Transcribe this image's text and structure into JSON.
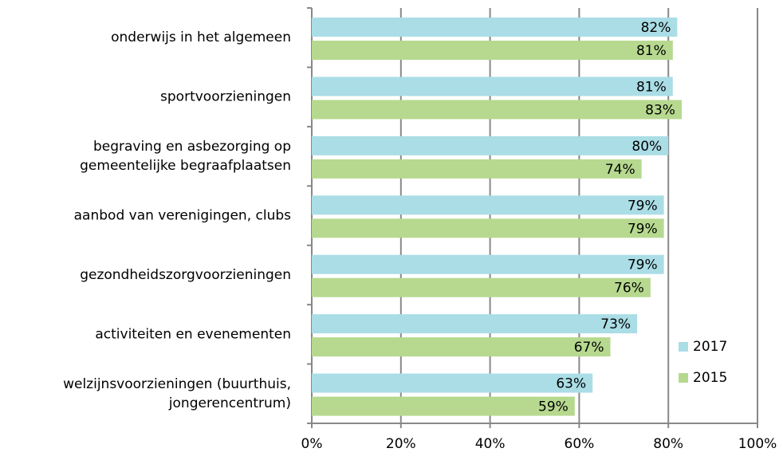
{
  "chart_data": {
    "type": "bar",
    "orientation": "horizontal",
    "categories": [
      "onderwijs in het algemeen",
      "sportvoorzieningen",
      "begraving en asbezorging op\ngemeentelijke begraafplaatsen",
      "aanbod van verenigingen, clubs",
      "gezondheidszorgvoorzieningen",
      "activiteiten en evenementen",
      "welzijnsvoorzieningen (buurthuis,\njongerencentrum)"
    ],
    "series": [
      {
        "name": "2017",
        "color": "#aadde6",
        "values": [
          82,
          81,
          80,
          79,
          79,
          73,
          63
        ],
        "value_labels": [
          "82%",
          "81%",
          "80%",
          "79%",
          "79%",
          "73%",
          "63%"
        ]
      },
      {
        "name": "2015",
        "color": "#b6d98f",
        "values": [
          81,
          83,
          74,
          79,
          76,
          67,
          59
        ],
        "value_labels": [
          "81%",
          "83%",
          "74%",
          "79%",
          "76%",
          "67%",
          "59%"
        ]
      }
    ],
    "xlim": [
      0,
      100
    ],
    "xticks": [
      {
        "value": 0,
        "label": "0%"
      },
      {
        "value": 20,
        "label": "20%"
      },
      {
        "value": 40,
        "label": "40%"
      },
      {
        "value": 60,
        "label": "60%"
      },
      {
        "value": 80,
        "label": "80%"
      },
      {
        "value": 100,
        "label": "100%"
      }
    ],
    "grid": true,
    "legend": "right"
  }
}
